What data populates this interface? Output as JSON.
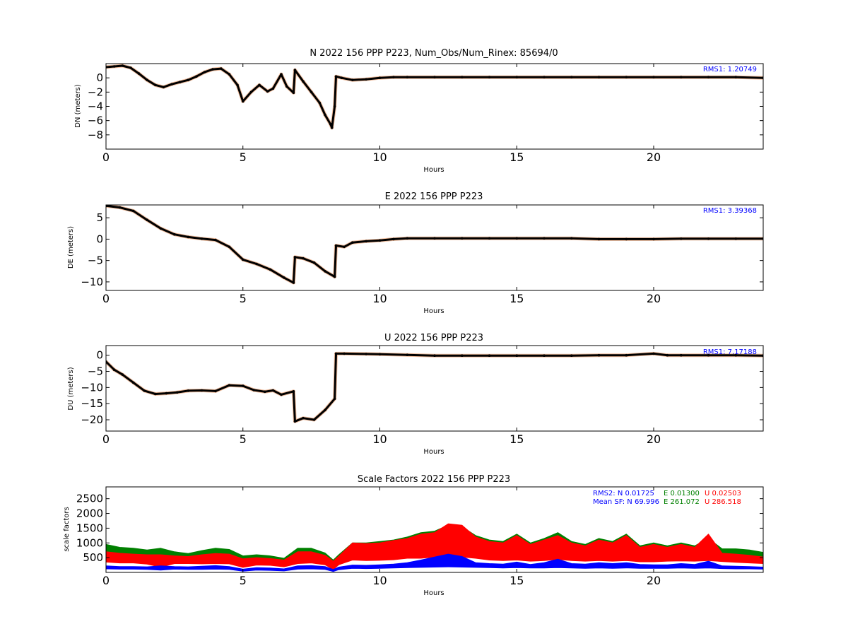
{
  "chart_data": [
    {
      "type": "scatter",
      "title": "N 2022 156 PPP  P223, Num_Obs/Num_Rinex: 85694/0",
      "xlabel": "Hours",
      "ylabel": "DN (meters)",
      "xlim": [
        0,
        24
      ],
      "ylim": [
        -10,
        2
      ],
      "x_ticks": [
        0,
        5,
        10,
        15,
        20
      ],
      "y_ticks": [
        0,
        -2,
        -4,
        -6,
        -8
      ],
      "grid": false,
      "annotation": "RMS1:  1.20749",
      "annotation_color": "#0000ff",
      "series": [
        {
          "color": "#000000",
          "x": [
            0,
            0.3,
            0.6,
            0.9,
            1.2,
            1.5,
            1.8,
            2.1,
            2.4,
            2.7,
            3.0,
            3.3,
            3.6,
            3.9,
            4.2,
            4.5,
            4.8,
            5.0,
            5.3,
            5.6,
            5.9,
            6.1,
            6.4,
            6.6,
            6.85,
            6.9,
            7.2,
            7.5,
            7.8,
            8.0,
            8.2,
            8.25,
            8.35,
            8.4,
            8.6,
            9.0,
            9.5,
            10,
            10.5,
            11,
            12,
            13,
            14,
            15,
            16,
            17,
            18,
            19,
            20,
            21,
            22,
            23,
            24
          ],
          "y": [
            1.5,
            1.6,
            1.7,
            1.4,
            0.6,
            -0.3,
            -1.0,
            -1.3,
            -0.9,
            -0.6,
            -0.3,
            0.2,
            0.8,
            1.2,
            1.3,
            0.5,
            -1.0,
            -3.3,
            -2.0,
            -1.0,
            -1.9,
            -1.5,
            0.5,
            -1.2,
            -2.1,
            1.1,
            -0.5,
            -2.0,
            -3.5,
            -5.2,
            -6.5,
            -7.0,
            -4.0,
            0.2,
            0.0,
            -0.3,
            -0.2,
            0.0,
            0.1,
            0.1,
            0.1,
            0.1,
            0.1,
            0.1,
            0.1,
            0.1,
            0.1,
            0.1,
            0.1,
            0.1,
            0.1,
            0.1,
            0.0
          ]
        }
      ]
    },
    {
      "type": "scatter",
      "title": "E 2022 156 PPP  P223",
      "xlabel": "Hours",
      "ylabel": "DE (meters)",
      "xlim": [
        0,
        24
      ],
      "ylim": [
        -12,
        8
      ],
      "x_ticks": [
        0,
        5,
        10,
        15,
        20
      ],
      "y_ticks": [
        5,
        0,
        -5,
        -10
      ],
      "grid": false,
      "annotation": "RMS1:  3.39368",
      "annotation_color": "#0000ff",
      "series": [
        {
          "color": "#000000",
          "x": [
            0,
            0.5,
            1.0,
            1.5,
            2.0,
            2.5,
            3.0,
            3.5,
            4.0,
            4.5,
            5.0,
            5.5,
            6.0,
            6.5,
            6.85,
            6.9,
            7.2,
            7.6,
            8.0,
            8.35,
            8.4,
            8.7,
            9.0,
            9.5,
            10,
            10.5,
            11,
            12,
            13,
            14,
            15,
            16,
            17,
            18,
            19,
            20,
            21,
            22,
            23,
            24
          ],
          "y": [
            7.8,
            7.4,
            6.6,
            4.5,
            2.5,
            1.1,
            0.5,
            0.1,
            -0.2,
            -1.8,
            -4.8,
            -5.8,
            -7.1,
            -9.0,
            -10.2,
            -4.2,
            -4.5,
            -5.5,
            -7.5,
            -8.8,
            -1.5,
            -1.8,
            -0.8,
            -0.5,
            -0.3,
            0.0,
            0.2,
            0.2,
            0.2,
            0.2,
            0.2,
            0.2,
            0.2,
            0.0,
            0.0,
            0.0,
            0.1,
            0.1,
            0.1,
            0.1
          ]
        }
      ]
    },
    {
      "type": "scatter",
      "title": "U 2022 156 PPP  P223",
      "xlabel": "Hours",
      "ylabel": "DU (meters)",
      "xlim": [
        0,
        24
      ],
      "ylim": [
        -23.5,
        3
      ],
      "x_ticks": [
        0,
        5,
        10,
        15,
        20
      ],
      "y_ticks": [
        0,
        -5,
        -10,
        -15,
        -20
      ],
      "grid": false,
      "annotation": "RMS1:  7.17188",
      "annotation_color": "#0000ff",
      "series": [
        {
          "color": "#000000",
          "x": [
            0,
            0.3,
            0.6,
            1.0,
            1.4,
            1.8,
            2.2,
            2.6,
            3.0,
            3.5,
            4.0,
            4.5,
            5.0,
            5.4,
            5.8,
            6.1,
            6.4,
            6.85,
            6.9,
            7.2,
            7.6,
            8.0,
            8.35,
            8.4,
            8.7,
            9.5,
            10,
            11,
            12,
            13,
            14,
            15,
            16,
            17,
            18,
            19,
            20,
            20.5,
            21,
            22,
            23,
            24
          ],
          "y": [
            -2,
            -4.5,
            -6,
            -8.5,
            -11,
            -12,
            -11.8,
            -11.5,
            -11,
            -10.9,
            -11.1,
            -9.3,
            -9.5,
            -10.8,
            -11.3,
            -10.9,
            -12.2,
            -11.2,
            -20.5,
            -19.5,
            -20,
            -17,
            -13.5,
            0.5,
            0.5,
            0.4,
            0.3,
            0.1,
            -0.1,
            -0.1,
            -0.1,
            -0.1,
            -0.1,
            -0.1,
            0.0,
            0.0,
            0.5,
            0.0,
            0.0,
            0.0,
            0.0,
            -0.1
          ]
        }
      ]
    },
    {
      "type": "area",
      "title": "Scale Factors 2022 156 PPP  P223",
      "xlabel": "Hours",
      "ylabel": "scale factors",
      "xlim": [
        0,
        24
      ],
      "ylim": [
        0,
        2900
      ],
      "x_ticks": [
        0,
        5,
        10,
        15,
        20
      ],
      "y_ticks": [
        500,
        1000,
        1500,
        2000,
        2500
      ],
      "grid": false,
      "stats": [
        {
          "label": "RMS2: N  0.01725",
          "color": "#0000ff"
        },
        {
          "label": "E  0.01300",
          "color": "#008000"
        },
        {
          "label": "U  0.02503",
          "color": "#ff0000"
        },
        {
          "label": "Mean SF: N  69.996",
          "color": "#0000ff"
        },
        {
          "label": "E 261.072",
          "color": "#008000"
        },
        {
          "label": "U  286.518",
          "color": "#ff0000"
        }
      ],
      "x": [
        0,
        0.5,
        1.0,
        1.5,
        2.0,
        2.5,
        3.0,
        3.5,
        4.0,
        4.5,
        5.0,
        5.5,
        6.0,
        6.5,
        7.0,
        7.5,
        8.0,
        8.3,
        8.5,
        9.0,
        9.5,
        10.0,
        10.5,
        11.0,
        11.5,
        12.0,
        12.5,
        13.0,
        13.5,
        14.0,
        14.5,
        15.0,
        15.5,
        16.0,
        16.5,
        17.0,
        17.5,
        18.0,
        18.5,
        19.0,
        19.5,
        20.0,
        20.5,
        21.0,
        21.5,
        22.0,
        22.5,
        23.0,
        23.5,
        24.0
      ],
      "series": [
        {
          "color": "#008000",
          "upper": [
            950,
            850,
            820,
            760,
            820,
            700,
            640,
            740,
            820,
            780,
            560,
            600,
            560,
            480,
            820,
            820,
            660,
            420,
            600,
            1000,
            1000,
            1050,
            1100,
            1200,
            1350,
            1400,
            1600,
            1550,
            1250,
            1100,
            1050,
            1300,
            1000,
            1150,
            1350,
            1050,
            950,
            1150,
            1050,
            1300,
            900,
            1000,
            900,
            1000,
            900,
            1150,
            800,
            800,
            760,
            680
          ],
          "lower": [
            420,
            380,
            380,
            350,
            260,
            340,
            350,
            330,
            350,
            340,
            220,
            300,
            290,
            230,
            350,
            380,
            300,
            150,
            300,
            450,
            420,
            440,
            460,
            520,
            520,
            560,
            620,
            560,
            520,
            450,
            420,
            460,
            400,
            420,
            480,
            430,
            410,
            420,
            410,
            420,
            380,
            380,
            400,
            420,
            410,
            420,
            400,
            360,
            350,
            320
          ]
        },
        {
          "color": "#ff0000",
          "upper": [
            700,
            650,
            620,
            600,
            600,
            560,
            540,
            600,
            640,
            620,
            460,
            500,
            470,
            420,
            700,
            700,
            580,
            380,
            550,
            1000,
            980,
            1000,
            1080,
            1150,
            1300,
            1350,
            1650,
            1600,
            1200,
            1050,
            1000,
            1250,
            950,
            1100,
            1250,
            1000,
            900,
            1100,
            1000,
            1250,
            850,
            950,
            850,
            950,
            850,
            1300,
            650,
            620,
            580,
            520
          ],
          "lower": [
            350,
            320,
            320,
            280,
            180,
            300,
            300,
            290,
            300,
            290,
            170,
            250,
            240,
            190,
            300,
            320,
            260,
            100,
            260,
            420,
            400,
            410,
            430,
            480,
            480,
            520,
            560,
            520,
            480,
            420,
            400,
            420,
            380,
            400,
            440,
            400,
            380,
            400,
            380,
            400,
            360,
            360,
            380,
            390,
            380,
            400,
            370,
            340,
            320,
            300
          ]
        },
        {
          "color": "#0000ff",
          "upper": [
            220,
            200,
            200,
            190,
            220,
            200,
            190,
            210,
            230,
            200,
            110,
            160,
            150,
            120,
            220,
            230,
            200,
            100,
            180,
            250,
            240,
            260,
            280,
            330,
            420,
            520,
            620,
            540,
            330,
            300,
            280,
            350,
            270,
            330,
            450,
            300,
            280,
            330,
            300,
            330,
            270,
            260,
            260,
            300,
            270,
            380,
            220,
            210,
            200,
            180
          ],
          "lower": [
            120,
            110,
            110,
            100,
            80,
            110,
            100,
            100,
            110,
            100,
            40,
            80,
            70,
            50,
            110,
            120,
            100,
            30,
            90,
            140,
            130,
            140,
            150,
            160,
            170,
            180,
            190,
            180,
            170,
            160,
            150,
            160,
            150,
            150,
            160,
            150,
            140,
            150,
            140,
            150,
            140,
            140,
            140,
            150,
            140,
            150,
            130,
            120,
            120,
            110
          ]
        }
      ]
    }
  ]
}
